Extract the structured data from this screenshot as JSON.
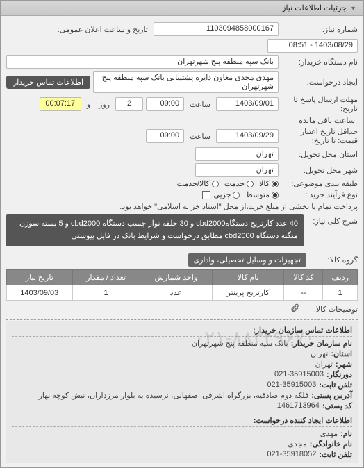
{
  "panel": {
    "title": "جزئیات اطلاعات نیاز"
  },
  "fields": {
    "need_number": {
      "label": "شماره نیاز:",
      "value": "1103094858000167"
    },
    "announce": {
      "label": "تاریخ و ساعت اعلان عمومی:",
      "value": "1403/08/29 - 08:51"
    },
    "buyer_org": {
      "label": "نام دستگاه خریدار:",
      "value": "بانک سپه منطقه پنج شهرتهران"
    },
    "requester": {
      "label": "ایجاد درخواست:",
      "value": "مهدی مجدی معاون دایره پشتیبانی بانک سپه منطقه پنج شهرتهران",
      "contact_btn": "اطلاعات تماس خریدار"
    },
    "reply_deadline": {
      "label": "مهلت ارسال پاسخ تا تاریخ:",
      "date": "1403/09/01",
      "time_label": "ساعت",
      "time": "09:00",
      "day_label": "روز",
      "days": "2",
      "and_label": "و",
      "remain": "00:07:17",
      "remain_label": "ساعت باقی مانده"
    },
    "price_validity": {
      "label": "حداقل تاریخ اعتبار قیمت: تا تاریخ:",
      "date": "1403/09/29",
      "time_label": "ساعت",
      "time": "09:00"
    },
    "delivery_province": {
      "label": "استان محل تحویل:",
      "value": "تهران"
    },
    "delivery_city": {
      "label": "شهر محل تحویل:",
      "value": "تهران"
    },
    "commodity_type": {
      "label": "طبقه بندی موضوعی:",
      "options": [
        {
          "text": "کالا",
          "checked": true
        },
        {
          "text": "خدمت",
          "checked": false
        },
        {
          "text": "کالا/خدمت",
          "checked": false
        }
      ]
    },
    "purchase_type": {
      "label": "نوع فرآیند خرید :",
      "options": [
        {
          "text": "متوسط",
          "checked": true
        },
        {
          "text": "جزیی",
          "checked": false
        }
      ],
      "partial_checkbox": "پرداخت تمام یا بخشی از مبلغ خرید،از محل \"اسناد خزانه اسلامی\" خواهد بود."
    },
    "description": {
      "label": "شرح کلی نیاز:",
      "text": "40 عدد کارتریج دستگاهcbd2000 و 30 حلقه نوار چسب دستگاه cbd2000 و 5 بسته سوزن منگنه دستگاه cbd2000 مطابق درخواست و شرایط بانک در فایل پیوستی"
    },
    "commodity_group": {
      "label": "گروه کالا:",
      "value": "تجهیزات و وسایل تحصیلی، واداری"
    },
    "attachments_label": "توضیحات کالا:",
    "attachment_icon_title": "پیوست"
  },
  "table": {
    "columns": [
      "ردیف",
      "کد کالا",
      "نام کالا",
      "واحد شمارش",
      "تعداد / مقدار",
      "تاریخ نیاز"
    ],
    "rows": [
      {
        "idx": "1",
        "code": "--",
        "name": "کارتریج پرینتر",
        "unit": "عدد",
        "qty": "1",
        "date": "1403/09/03"
      }
    ]
  },
  "contact": {
    "section1_title": "اطلاعات تماس سازمان خریدار:",
    "org_name": {
      "label": "نام سازمان خریدار:",
      "value": "بانک سپه منطقه پنج شهرتهران"
    },
    "province": {
      "label": "استان:",
      "value": "تهران"
    },
    "city": {
      "label": "شهر:",
      "value": "تهران"
    },
    "fax": {
      "label": "دورنگار:",
      "value": "021-35915003"
    },
    "phone": {
      "label": "تلفن ثابت:",
      "value": "021-35915003"
    },
    "address": {
      "label": "آدرس پستی:",
      "value": "فلکه دوم صادقیه، بزرگراه اشرفی اصفهانی، نرسیده به بلوار مرزداران، نبش کوچه بهار"
    },
    "postal": {
      "label": "کد پستی:",
      "value": "1461713964"
    },
    "section2_title": "اطلاعات ایجاد کننده درخواست:",
    "first_name": {
      "label": "نام:",
      "value": "مهدی"
    },
    "last_name": {
      "label": "نام خانوادگی:",
      "value": "مجدی"
    },
    "req_phone": {
      "label": "تلفن ثابت:",
      "value": "021-35918052"
    }
  },
  "watermark": "۰۲۱‑۸۸۳۴۹۶۷۰"
}
